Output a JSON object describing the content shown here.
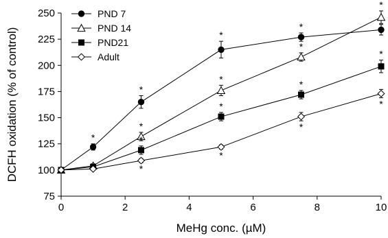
{
  "chart_data": {
    "type": "line",
    "xlabel": "MeHg conc. (µM)",
    "ylabel": "DCFH oxidation (% of control)",
    "xlim": [
      0,
      10
    ],
    "ylim": [
      75,
      250
    ],
    "xticks": [
      "0",
      "2",
      "4",
      "6",
      "8",
      "10"
    ],
    "yticks": [
      "75",
      "100",
      "125",
      "150",
      "175",
      "200",
      "225",
      "250"
    ],
    "legend_position": "top-left",
    "x": [
      0,
      1,
      2.5,
      5,
      7.5,
      10
    ],
    "significance_label": "*",
    "series": [
      {
        "name": "PND 7",
        "marker": "filled-circle",
        "values": [
          100,
          122,
          165,
          215,
          227,
          234
        ],
        "error": [
          0,
          3,
          6,
          8,
          4,
          5
        ],
        "significant": [
          false,
          true,
          true,
          true,
          true,
          true
        ],
        "star_position": [
          "above",
          "above",
          "above",
          "above",
          "above",
          "above"
        ]
      },
      {
        "name": "PND 14",
        "marker": "open-triangle",
        "values": [
          100,
          104,
          132,
          176,
          208,
          246
        ],
        "error": [
          0,
          2,
          4,
          5,
          4,
          6
        ],
        "significant": [
          false,
          false,
          true,
          true,
          true,
          true
        ],
        "star_position": [
          "above",
          "above",
          "above",
          "above",
          "above",
          "above"
        ]
      },
      {
        "name": "PND21",
        "marker": "filled-square",
        "values": [
          100,
          103,
          119,
          151,
          172,
          199
        ],
        "error": [
          0,
          2,
          4,
          4,
          4,
          6
        ],
        "significant": [
          false,
          false,
          true,
          true,
          true,
          true
        ],
        "star_position": [
          "above",
          "above",
          "above",
          "above",
          "above",
          "above"
        ]
      },
      {
        "name": "Adult",
        "marker": "open-diamond",
        "values": [
          100,
          101,
          109,
          122,
          151,
          173
        ],
        "error": [
          0,
          1,
          2,
          2,
          4,
          4
        ],
        "significant": [
          false,
          false,
          true,
          true,
          true,
          true
        ],
        "star_position": [
          "below",
          "below",
          "below",
          "below",
          "below",
          "below"
        ]
      }
    ],
    "colors": {
      "series": "#000000",
      "axis": "#000000",
      "background": "#ffffff"
    }
  }
}
